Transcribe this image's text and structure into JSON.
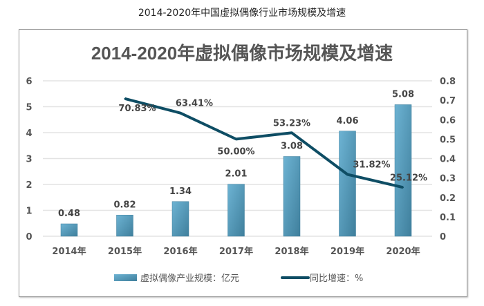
{
  "caption": "2014-2020年中国虚拟偶像行业市场规模及增速",
  "chart_data": {
    "type": "bar+line",
    "title": "2014-2020年虚拟偶像市场规模及增速",
    "categories": [
      "2014年",
      "2015年",
      "2016年",
      "2017年",
      "2018年",
      "2019年",
      "2020年"
    ],
    "series": [
      {
        "name": "虚拟偶像产业规模：亿元",
        "type": "bar",
        "axis": "left",
        "color": "#5ba3c4",
        "values": [
          0.48,
          0.82,
          1.34,
          2.01,
          3.08,
          4.06,
          5.08
        ],
        "labels": [
          "0.48",
          "0.82",
          "1.34",
          "2.01",
          "3.08",
          "4.06",
          "5.08"
        ]
      },
      {
        "name": "同比增速：%",
        "type": "line",
        "axis": "right",
        "color": "#0e4d64",
        "values": [
          null,
          0.7083,
          0.6341,
          0.5,
          0.5323,
          0.3182,
          0.2512
        ],
        "labels": [
          "",
          "70.83%",
          "63.41%",
          "50.00%",
          "53.23%",
          "31.82%",
          "25.12%"
        ]
      }
    ],
    "y_left": {
      "range": [
        0,
        6
      ],
      "ticks": [
        "0",
        "1",
        "2",
        "3",
        "4",
        "5",
        "6"
      ]
    },
    "y_right": {
      "range": [
        0,
        0.8
      ],
      "ticks": [
        "0",
        "0.1",
        "0.2",
        "0.3",
        "0.4",
        "0.5",
        "0.6",
        "0.7",
        "0.8"
      ]
    },
    "grid": true,
    "legend": "bottom"
  }
}
